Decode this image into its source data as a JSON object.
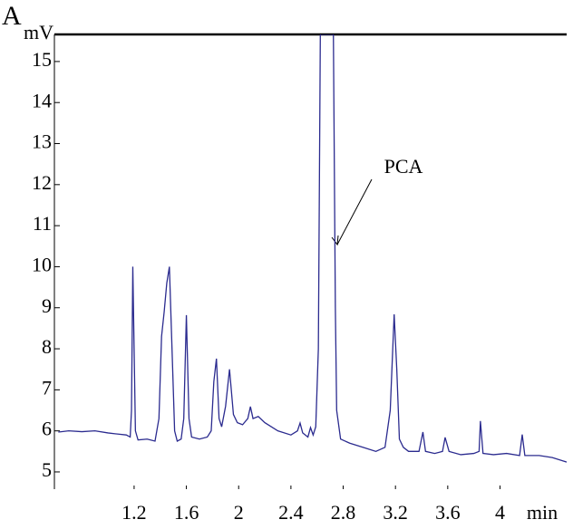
{
  "chart_data": {
    "type": "line",
    "panel_label": "A",
    "ylabel": "mV",
    "xlabel": "min",
    "annotation": "PCA",
    "xlim": [
      0.59,
      4.51
    ],
    "ylim": [
      4.58,
      15.66
    ],
    "xticks": [
      1.2,
      1.6,
      2,
      2.4,
      2.8,
      3.2,
      3.6,
      4
    ],
    "yticks": [
      5,
      6,
      7,
      8,
      9,
      10,
      11,
      12,
      13,
      14,
      15
    ],
    "series": [
      {
        "color": "#2b2b8f",
        "x": [
          0.62,
          0.7,
          0.8,
          0.9,
          1.0,
          1.08,
          1.14,
          1.17,
          1.18,
          1.19,
          1.2,
          1.21,
          1.23,
          1.3,
          1.36,
          1.39,
          1.41,
          1.43,
          1.45,
          1.47,
          1.49,
          1.51,
          1.53,
          1.56,
          1.58,
          1.6,
          1.62,
          1.64,
          1.7,
          1.76,
          1.79,
          1.81,
          1.83,
          1.85,
          1.87,
          1.9,
          1.93,
          1.96,
          1.99,
          2.03,
          2.07,
          2.09,
          2.11,
          2.15,
          2.2,
          2.3,
          2.4,
          2.45,
          2.47,
          2.49,
          2.53,
          2.55,
          2.57,
          2.59,
          2.61,
          2.625,
          2.725,
          2.74,
          2.75,
          2.78,
          2.85,
          2.95,
          3.05,
          3.12,
          3.16,
          3.19,
          3.21,
          3.23,
          3.26,
          3.3,
          3.38,
          3.41,
          3.43,
          3.5,
          3.56,
          3.58,
          3.61,
          3.7,
          3.8,
          3.84,
          3.85,
          3.87,
          3.95,
          4.05,
          4.15,
          4.17,
          4.19,
          4.3,
          4.4,
          4.51
        ],
        "values": [
          5.97,
          6.0,
          5.98,
          6.0,
          5.95,
          5.92,
          5.9,
          5.85,
          6.5,
          10.0,
          8.0,
          6.0,
          5.78,
          5.8,
          5.75,
          6.3,
          8.3,
          8.9,
          9.6,
          10.0,
          8.0,
          6.0,
          5.75,
          5.8,
          6.3,
          8.82,
          6.3,
          5.85,
          5.8,
          5.85,
          6.0,
          7.2,
          7.76,
          6.3,
          6.1,
          6.6,
          7.5,
          6.4,
          6.2,
          6.15,
          6.3,
          6.59,
          6.3,
          6.35,
          6.2,
          6.0,
          5.9,
          6.0,
          6.19,
          5.95,
          5.85,
          6.08,
          5.9,
          6.1,
          8.0,
          15.66,
          15.66,
          9.0,
          6.5,
          5.8,
          5.7,
          5.6,
          5.5,
          5.6,
          6.5,
          8.84,
          7.5,
          5.8,
          5.6,
          5.5,
          5.5,
          5.97,
          5.5,
          5.45,
          5.5,
          5.84,
          5.5,
          5.42,
          5.45,
          5.5,
          6.24,
          5.45,
          5.42,
          5.45,
          5.4,
          5.91,
          5.4,
          5.4,
          5.35,
          5.24
        ]
      }
    ]
  }
}
